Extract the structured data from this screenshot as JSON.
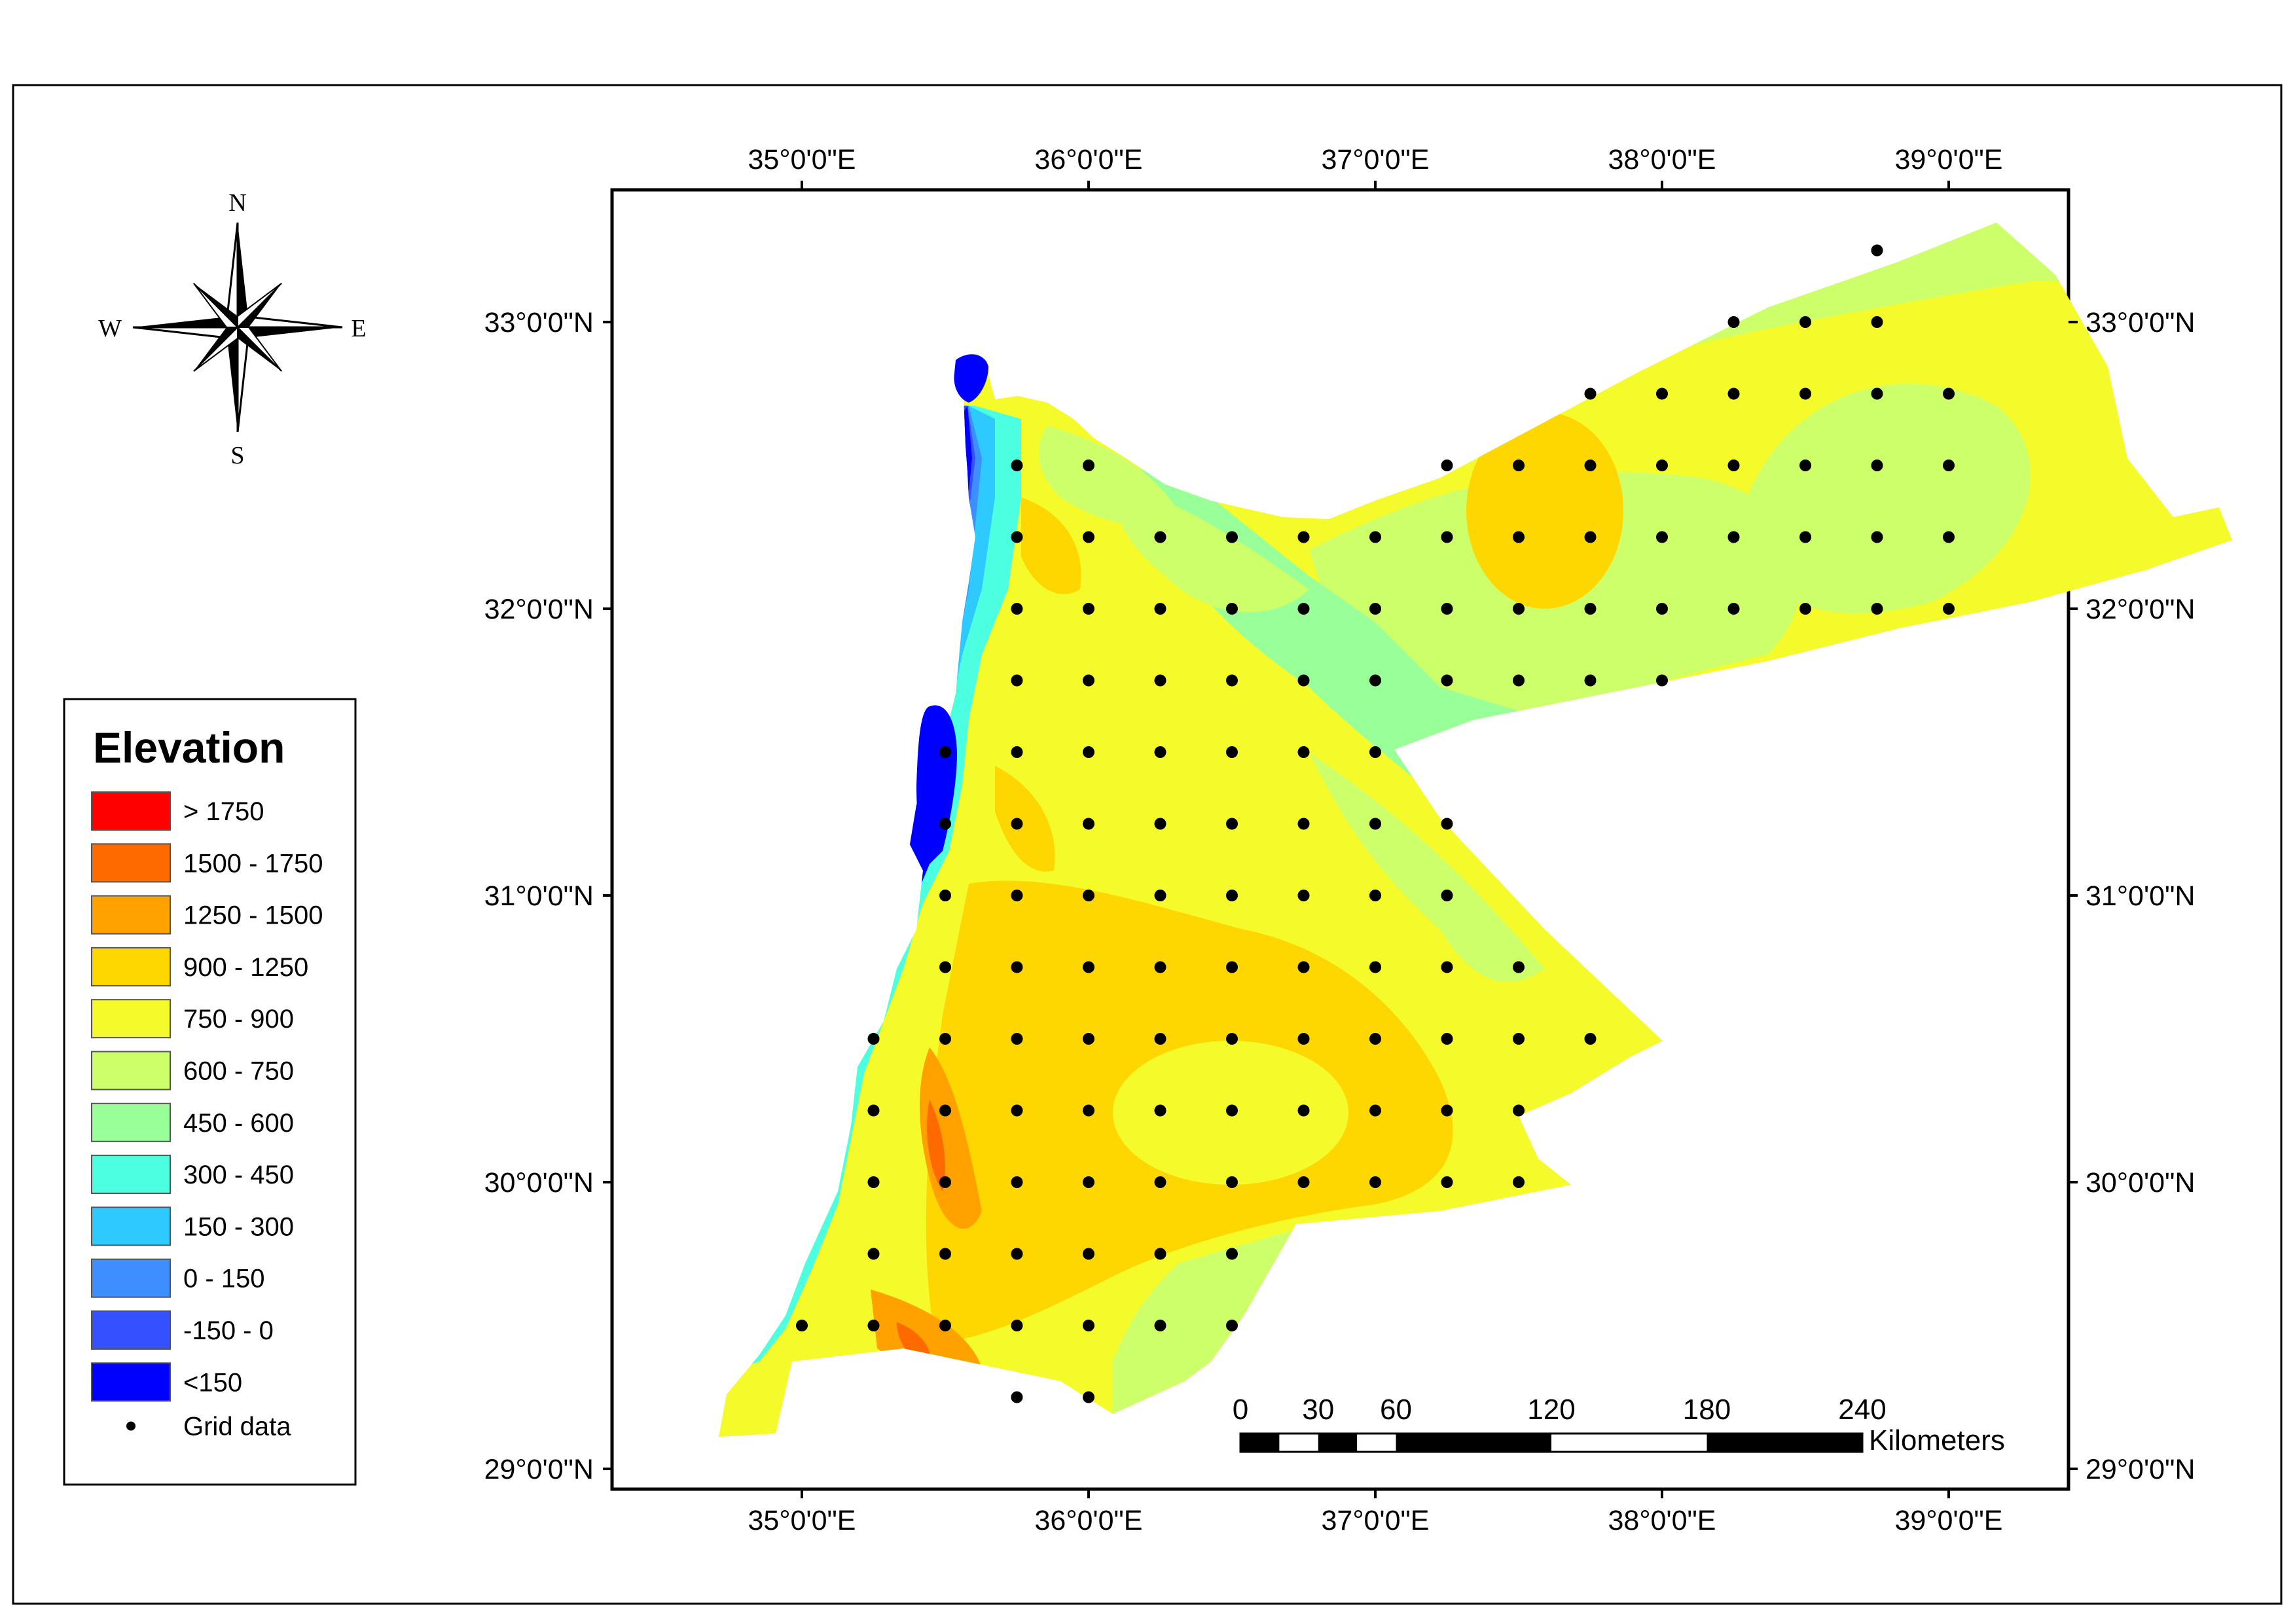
{
  "compass": {
    "n": "N",
    "s": "S",
    "e": "E",
    "w": "W"
  },
  "axes": {
    "lon_ticks": [
      "35°0'0\"E",
      "36°0'0\"E",
      "37°0'0\"E",
      "38°0'0\"E",
      "39°0'0\"E"
    ],
    "lat_ticks": [
      "33°0'0\"N",
      "32°0'0\"N",
      "31°0'0\"N",
      "30°0'0\"N",
      "29°0'0\"N"
    ]
  },
  "legend": {
    "title": "Elevation",
    "items": [
      {
        "label": "> 1750",
        "color": "#ff0000"
      },
      {
        "label": "1500 - 1750",
        "color": "#ff6a00"
      },
      {
        "label": "1250 - 1500",
        "color": "#ffa200"
      },
      {
        "label": "900 - 1250",
        "color": "#ffd700"
      },
      {
        "label": "750 - 900",
        "color": "#f5fa2a"
      },
      {
        "label": "600 - 750",
        "color": "#ccff6a"
      },
      {
        "label": "450 - 600",
        "color": "#99ff99"
      },
      {
        "label": "300 - 450",
        "color": "#4cffe0"
      },
      {
        "label": "150 - 300",
        "color": "#2ecaff"
      },
      {
        "label": "0 - 150",
        "color": "#3d8eff"
      },
      {
        "label": "-150 - 0",
        "color": "#3550ff"
      },
      {
        "label": "<150",
        "color": "#0000ff"
      }
    ],
    "grid_label": "Grid data"
  },
  "scalebar": {
    "labels": [
      "0",
      "30",
      "60",
      "120",
      "180",
      "240"
    ],
    "unit": "Kilometers"
  }
}
